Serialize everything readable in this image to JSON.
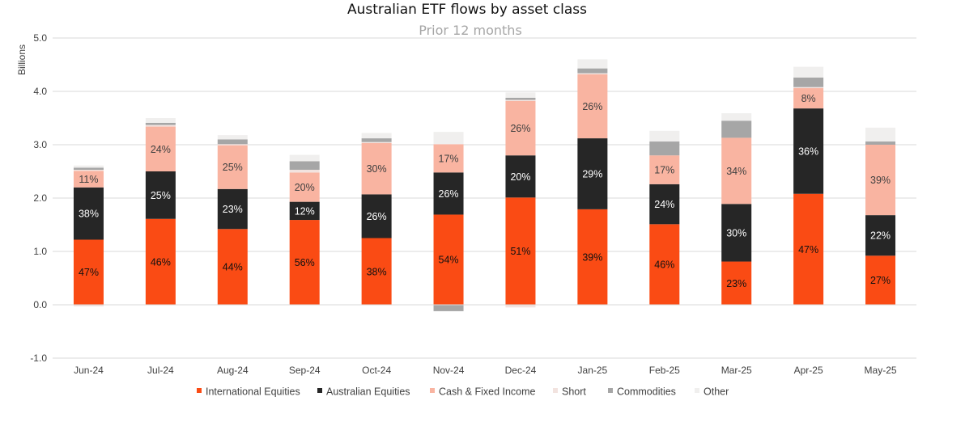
{
  "chart_data": {
    "type": "bar",
    "stacked": true,
    "title": "Australian ETF flows by asset class",
    "subtitle": "Prior 12 months",
    "ylabel": "Billions",
    "xlabel": "",
    "ylim": [
      -1.0,
      5.0
    ],
    "yticks": [
      "-1.0",
      "0.0",
      "1.0",
      "2.0",
      "3.0",
      "4.0",
      "5.0"
    ],
    "grid": true,
    "legend_position": "bottom",
    "categories": [
      "Jun-24",
      "Jul-24",
      "Aug-24",
      "Sep-24",
      "Oct-24",
      "Nov-24",
      "Dec-24",
      "Jan-25",
      "Feb-25",
      "Mar-25",
      "Apr-25",
      "May-25"
    ],
    "series": [
      {
        "name": "International Equities",
        "color": "#fa4b14",
        "label_color": "#111111",
        "values": [
          1.22,
          1.61,
          1.42,
          1.59,
          1.25,
          1.69,
          2.01,
          1.79,
          1.51,
          0.81,
          2.08,
          0.92
        ],
        "labels": [
          "47%",
          "46%",
          "44%",
          "56%",
          "38%",
          "54%",
          "51%",
          "39%",
          "46%",
          "23%",
          "47%",
          "27%"
        ]
      },
      {
        "name": "Australian Equities",
        "color": "#262626",
        "label_color": "#ffffff",
        "values": [
          0.98,
          0.89,
          0.75,
          0.34,
          0.82,
          0.79,
          0.79,
          1.33,
          0.75,
          1.08,
          1.6,
          0.76
        ],
        "labels": [
          "38%",
          "25%",
          "23%",
          "12%",
          "26%",
          "26%",
          "20%",
          "29%",
          "24%",
          "30%",
          "36%",
          "22%"
        ]
      },
      {
        "name": "Cash & Fixed Income",
        "color": "#f9b4a1",
        "label_color": "#404040",
        "values": [
          0.31,
          0.84,
          0.82,
          0.55,
          0.96,
          0.53,
          1.02,
          1.2,
          0.54,
          1.24,
          0.38,
          1.32
        ],
        "labels": [
          "11%",
          "24%",
          "25%",
          "20%",
          "30%",
          "17%",
          "26%",
          "26%",
          "17%",
          "34%",
          "8%",
          "39%"
        ]
      },
      {
        "name": "Short",
        "color": "#f2e3df",
        "label_color": "#404040",
        "values": [
          0.02,
          0.03,
          0.02,
          0.05,
          0.02,
          0.0,
          0.02,
          0.02,
          0.0,
          0.0,
          0.02,
          0.0
        ],
        "labels": [
          "",
          "",
          "",
          "",
          "",
          "",
          "",
          "",
          "",
          "",
          "",
          ""
        ]
      },
      {
        "name": "Commodities",
        "color": "#a6a6a6",
        "label_color": "#404040",
        "values": [
          0.04,
          0.04,
          0.09,
          0.16,
          0.07,
          -0.12,
          0.04,
          0.09,
          0.26,
          0.32,
          0.18,
          0.06
        ],
        "labels": [
          "",
          "",
          "",
          "",
          "",
          "",
          "",
          "",
          "",
          "",
          "",
          ""
        ]
      },
      {
        "name": "Other",
        "color": "#f0efee",
        "label_color": "#404040",
        "values": [
          0.04,
          0.09,
          0.08,
          0.12,
          0.1,
          0.23,
          0.1,
          0.17,
          0.2,
          0.14,
          0.2,
          0.26
        ],
        "labels": [
          "",
          "",
          "",
          "",
          "",
          "",
          "",
          "",
          "",
          "",
          "",
          ""
        ]
      }
    ],
    "negative_stubs": [
      {
        "category": "Jun-24",
        "series": "Short",
        "value": -0.03
      },
      {
        "category": "Dec-24",
        "series": "Short",
        "value": -0.05
      }
    ]
  }
}
